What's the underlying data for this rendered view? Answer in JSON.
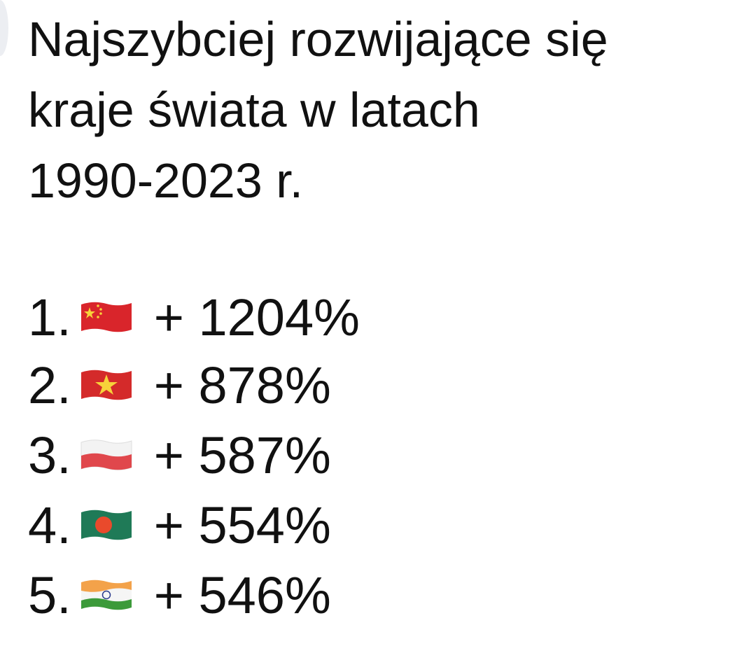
{
  "title_lines": [
    "Najszybciej rozwijające się",
    "kraje świata w latach",
    "1990-2023 r."
  ],
  "ranking": [
    {
      "rank": "1.",
      "flag": "china-flag-icon",
      "value": "+ 1204%"
    },
    {
      "rank": "2.",
      "flag": "vietnam-flag-icon",
      "value": "+ 878%"
    },
    {
      "rank": "3.",
      "flag": "poland-flag-icon",
      "value": "+ 587%"
    },
    {
      "rank": "4.",
      "flag": "bangladesh-flag-icon",
      "value": "+ 554%"
    },
    {
      "rank": "5.",
      "flag": "india-flag-icon",
      "value": "+ 546%"
    }
  ]
}
